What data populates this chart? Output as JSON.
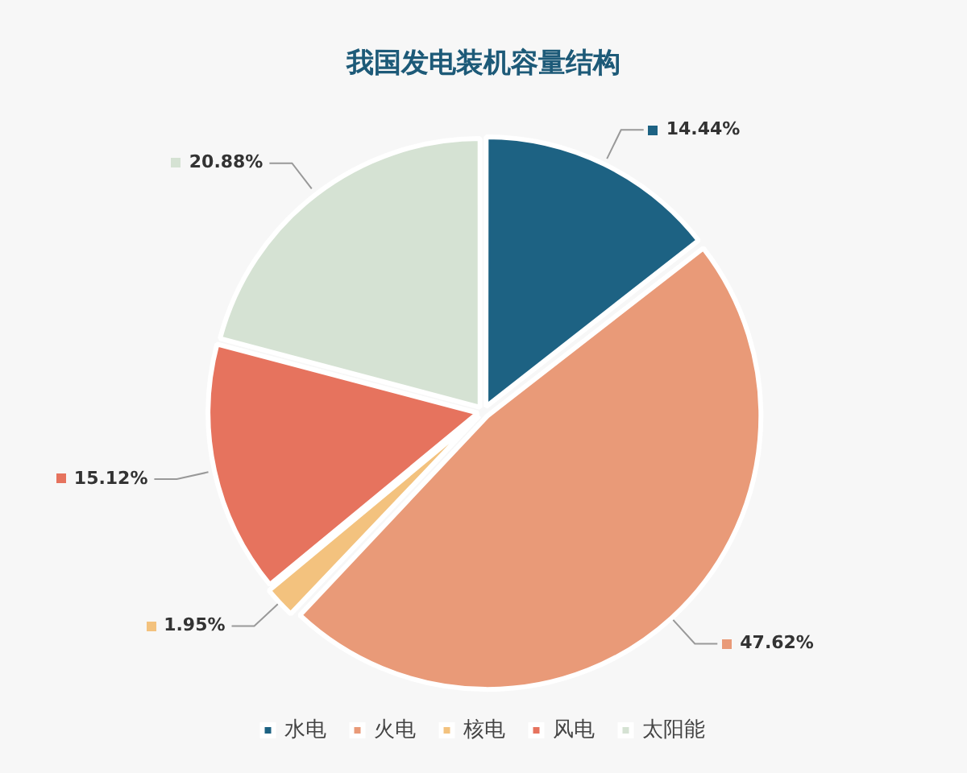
{
  "chart_data": {
    "type": "pie",
    "title": "我国发电装机容量结构",
    "categories": [
      "水电",
      "火电",
      "核电",
      "风电",
      "太阳能"
    ],
    "values": [
      14.44,
      47.62,
      1.95,
      15.12,
      20.88
    ],
    "value_labels": [
      "14.44%",
      "47.62%",
      "1.95%",
      "15.12%",
      "20.88%"
    ],
    "colors": [
      "#1d6283",
      "#e99a78",
      "#f3c27e",
      "#e6735e",
      "#d5e2d3"
    ],
    "legend": "bottom"
  }
}
